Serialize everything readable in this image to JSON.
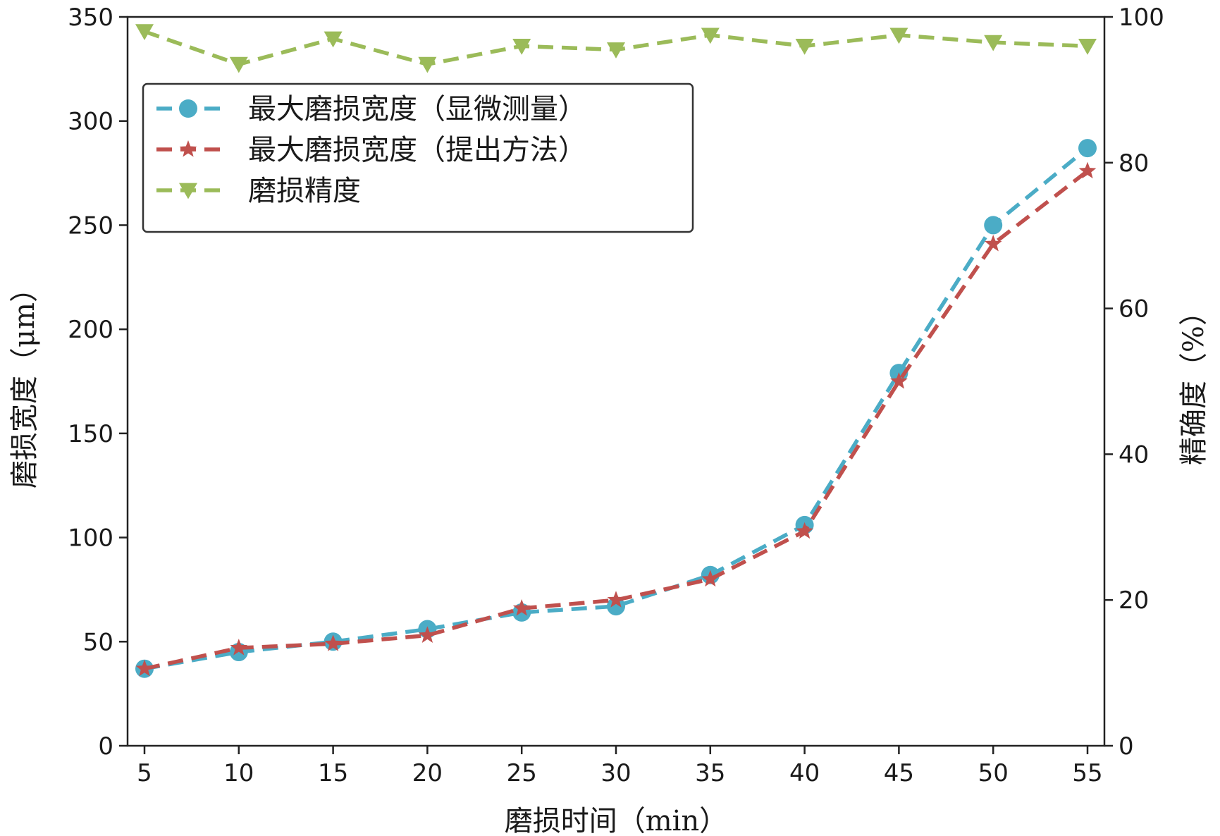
{
  "chart_data": {
    "type": "line",
    "x": [
      5,
      10,
      15,
      20,
      25,
      30,
      35,
      40,
      45,
      50,
      55
    ],
    "xlabel": "磨损时间（min）",
    "ylabel_left": "磨损宽度（μm）",
    "ylabel_right": "精确度（%）",
    "ylim_left": [
      0,
      350
    ],
    "ylim_right": [
      0,
      100
    ],
    "yticks_left": [
      0,
      50,
      100,
      150,
      200,
      250,
      300,
      350
    ],
    "yticks_right": [
      0,
      20,
      40,
      60,
      80,
      100
    ],
    "grid": false,
    "legend_position": "top-left",
    "series": [
      {
        "name": "最大磨损宽度（显微测量）",
        "axis": "left",
        "color": "#4bacc6",
        "marker": "circle",
        "line_style": "dashed",
        "values": [
          37,
          45,
          50,
          56,
          64,
          67,
          82,
          106,
          179,
          250,
          287
        ]
      },
      {
        "name": "最大磨损宽度（提出方法）",
        "axis": "left",
        "color": "#c0504d",
        "marker": "star",
        "line_style": "dashed",
        "values": [
          37,
          47,
          49,
          53,
          66,
          70,
          80,
          103,
          175,
          241,
          276
        ]
      },
      {
        "name": "磨损精度",
        "axis": "right",
        "color": "#9bbb59",
        "marker": "triangle-down",
        "line_style": "dashed",
        "values": [
          98,
          93.5,
          97,
          93.5,
          96,
          95.5,
          97.5,
          96,
          97.5,
          96.5,
          96
        ]
      }
    ]
  }
}
